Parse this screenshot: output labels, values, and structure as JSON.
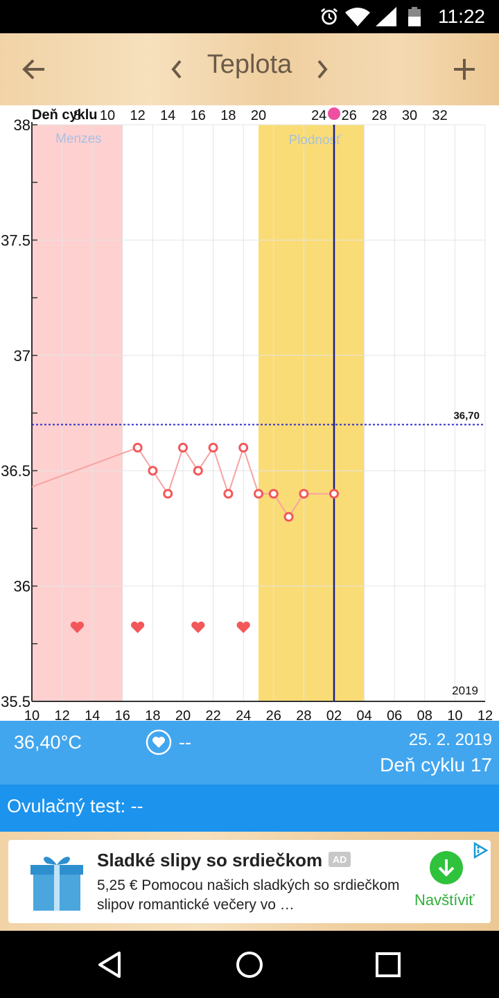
{
  "status": {
    "time": "11:22",
    "icons": [
      "alarm-icon",
      "wifi-icon",
      "signal-icon",
      "battery-icon"
    ]
  },
  "appbar": {
    "title": "Teplota",
    "icons": [
      "back-arrow-icon",
      "chevron-left-icon",
      "chevron-right-icon",
      "plus-icon"
    ]
  },
  "chart_data": {
    "type": "line",
    "title": "",
    "top_axis_label": "Deň cyklu",
    "top_ticks": [
      "8",
      "10",
      "12",
      "14",
      "16",
      "18",
      "20",
      "24",
      "26",
      "28",
      "30",
      "32"
    ],
    "top_ovulation_marker": "22",
    "bottom_ticks": [
      "10",
      "12",
      "14",
      "16",
      "18",
      "20",
      "22",
      "24",
      "26",
      "28",
      "02",
      "04",
      "06",
      "08",
      "10",
      "12"
    ],
    "y_ticks": [
      "38",
      "37.5",
      "37",
      "36.5",
      "36",
      "35.5"
    ],
    "ylim": [
      35.5,
      38
    ],
    "xlim": [
      10,
      40
    ],
    "year_label": "2019",
    "menses_label": "Menzes",
    "menses_range": [
      10,
      16
    ],
    "fertility_label": "Plodnosť",
    "fertility_range": [
      25,
      32
    ],
    "current_day": 30,
    "threshold": 36.7,
    "threshold_label": "36,70",
    "series": [
      {
        "x": [
          10,
          17,
          18,
          19,
          20,
          21,
          22,
          23,
          24,
          25,
          26,
          27,
          28,
          30
        ],
        "y": [
          36.43,
          36.6,
          36.5,
          36.4,
          36.6,
          36.5,
          36.6,
          36.4,
          36.6,
          36.4,
          36.4,
          36.3,
          36.4,
          36.4
        ],
        "marker_from_index": 1
      }
    ],
    "intercourse_days": [
      13,
      17,
      21,
      24
    ],
    "colors": {
      "menses": "#ffd0d0",
      "fertility": "#fadc76",
      "line": "#f6a3a3",
      "marker": "#f2585a",
      "threshold": "#2b2ccf",
      "current": "#1b1f8f",
      "menses_text": "#a9bfe6",
      "fertility_text": "#a7c2d6"
    }
  },
  "info": {
    "temp": "36,40°C",
    "heart_value": "--",
    "date": "25. 2. 2019",
    "cycle": "Deň cyklu 17"
  },
  "ovulation": {
    "text": "Ovulačný test: --"
  },
  "ad": {
    "title": "Sladké slipy so srdiečkom",
    "badge": "AD",
    "body": "5,25 € Pomocou našich sladkých so srdiečkom slipov romantické večery vo …",
    "cta": "Navštíviť"
  },
  "colors": {
    "info_bar": "#42a6ef",
    "ov_bar": "#1c93ed",
    "cta": "#2fc23c"
  }
}
